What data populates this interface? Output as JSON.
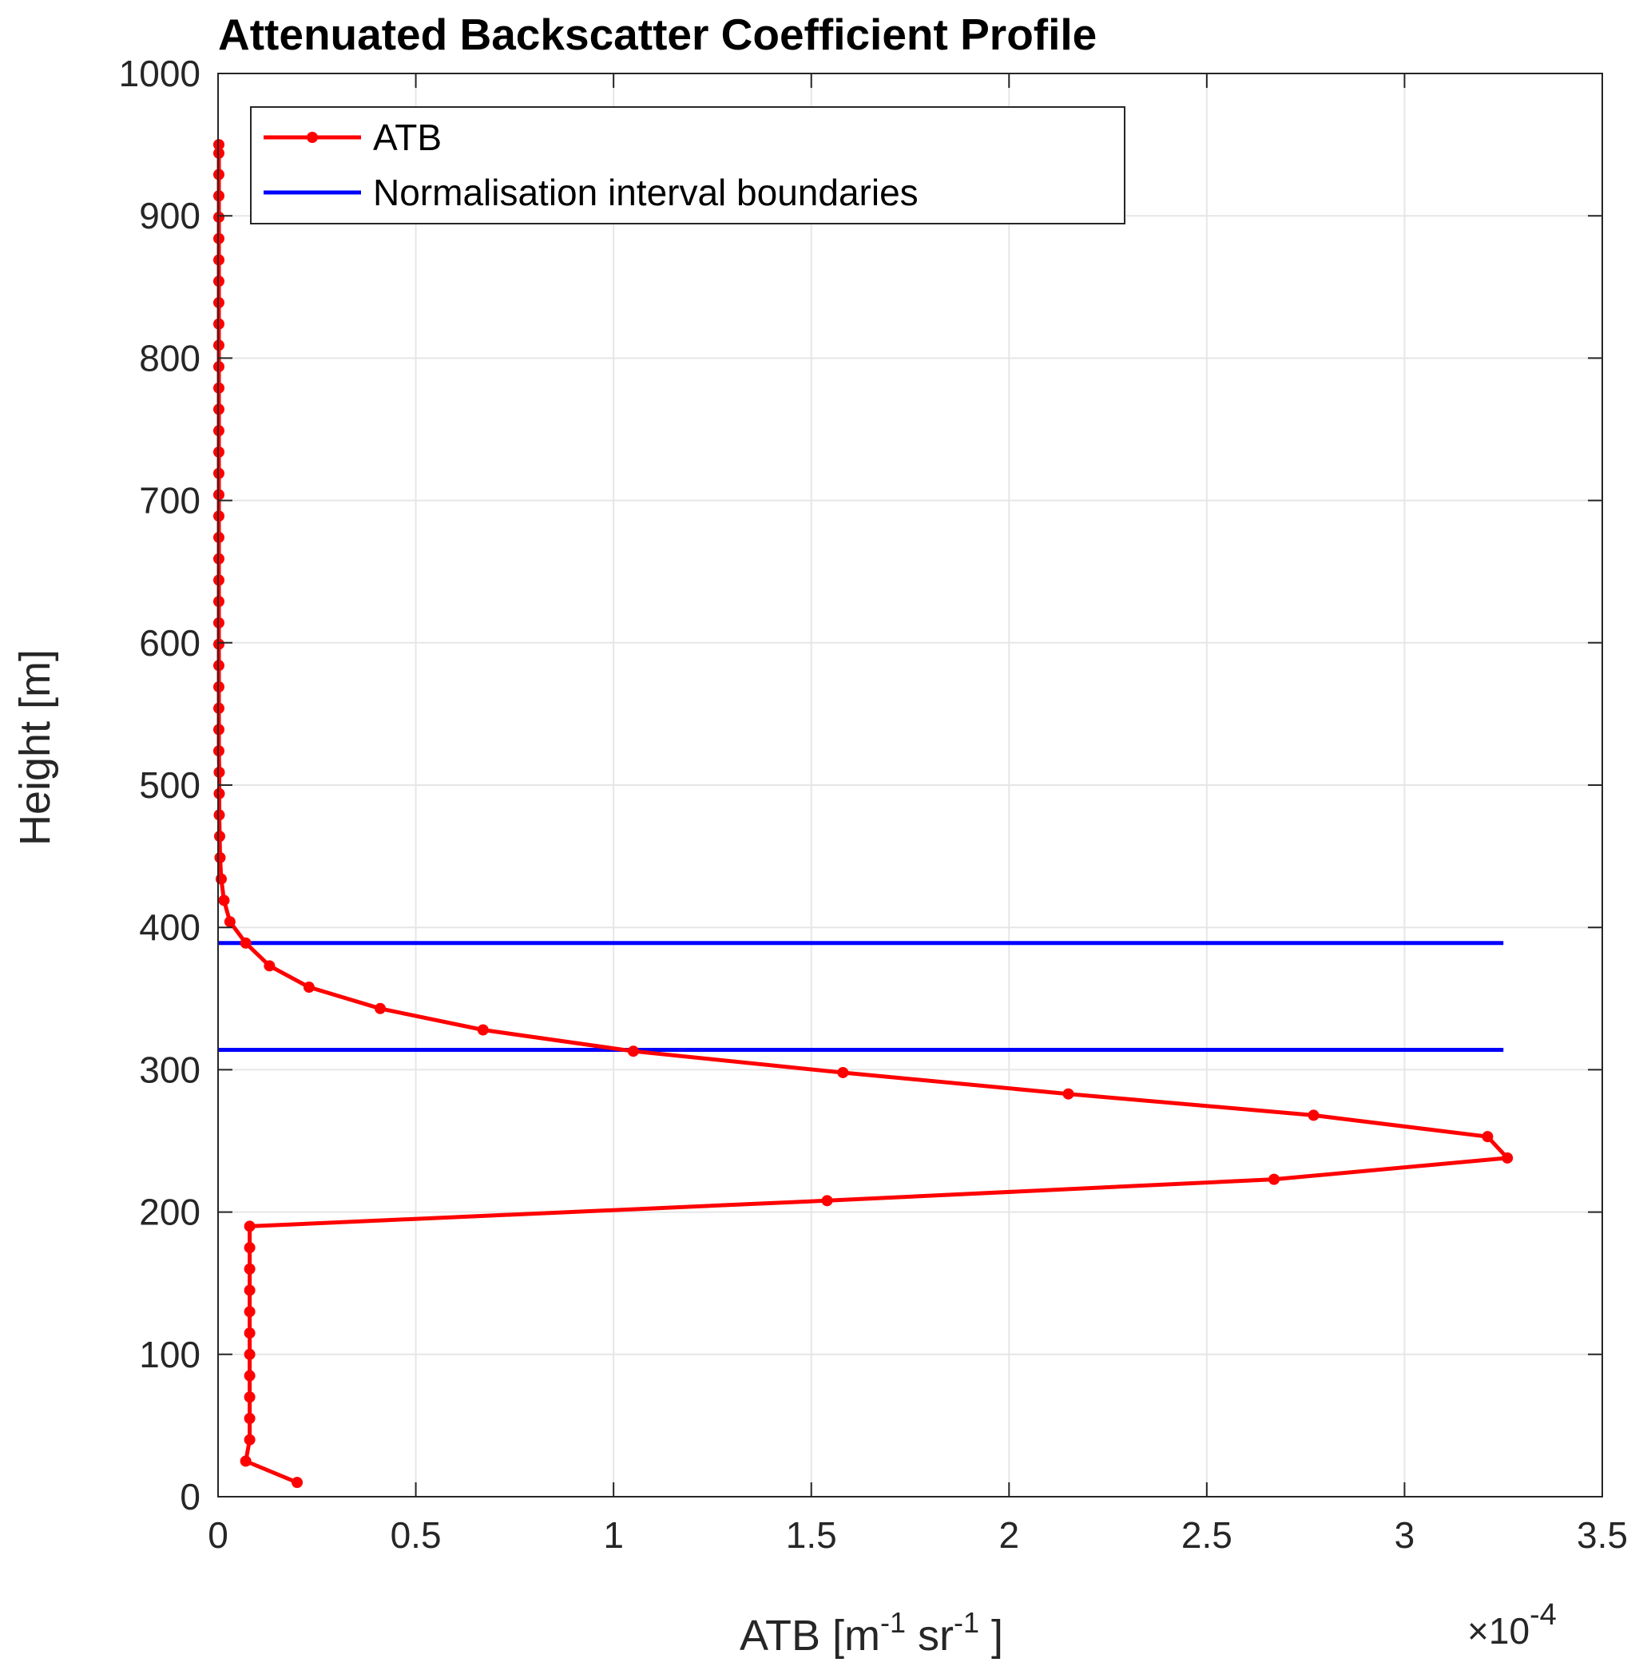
{
  "chart_data": {
    "type": "line",
    "title": "Attenuated Backscatter Coefficient Profile",
    "xlabel": {
      "base": "ATB [m",
      "exp1": "-1",
      "mid": " sr",
      "exp2": "-1",
      "end": " ]"
    },
    "ylabel": "Height [m]",
    "x_multiplier": {
      "prefix": "×10",
      "exponent": "-4"
    },
    "xlim": [
      0,
      3.5
    ],
    "ylim": [
      0,
      1000
    ],
    "xticks": [
      0,
      0.5,
      1,
      1.5,
      2,
      2.5,
      3,
      3.5
    ],
    "xtick_labels": [
      "0",
      "0.5",
      "1",
      "1.5",
      "2",
      "2.5",
      "3",
      "3.5"
    ],
    "yticks": [
      0,
      100,
      200,
      300,
      400,
      500,
      600,
      700,
      800,
      900,
      1000
    ],
    "ytick_labels": [
      "0",
      "100",
      "200",
      "300",
      "400",
      "500",
      "600",
      "700",
      "800",
      "900",
      "1000"
    ],
    "grid": true,
    "legend_position": "top-left",
    "colors": {
      "atb": "#ff0000",
      "boundaries": "#0000ff",
      "grid": "#e6e6e6",
      "axis": "#262626"
    },
    "series": [
      {
        "name": "ATB",
        "color": "#ff0000",
        "marker": "dot",
        "points": [
          [
            0.2,
            10
          ],
          [
            0.07,
            25
          ],
          [
            0.08,
            40
          ],
          [
            0.08,
            55
          ],
          [
            0.08,
            70
          ],
          [
            0.08,
            85
          ],
          [
            0.08,
            100
          ],
          [
            0.08,
            115
          ],
          [
            0.08,
            130
          ],
          [
            0.08,
            145
          ],
          [
            0.08,
            160
          ],
          [
            0.08,
            175
          ],
          [
            0.08,
            190
          ],
          [
            1.54,
            208
          ],
          [
            2.67,
            223
          ],
          [
            3.26,
            238
          ],
          [
            3.21,
            253
          ],
          [
            2.77,
            268
          ],
          [
            2.15,
            283
          ],
          [
            1.58,
            298
          ],
          [
            1.05,
            313
          ],
          [
            0.67,
            328
          ],
          [
            0.41,
            343
          ],
          [
            0.23,
            358
          ],
          [
            0.13,
            373
          ],
          [
            0.07,
            389
          ],
          [
            0.03,
            404
          ],
          [
            0.015,
            419
          ],
          [
            0.008,
            434
          ],
          [
            0.005,
            449
          ],
          [
            0.004,
            464
          ],
          [
            0.003,
            479
          ],
          [
            0.003,
            494
          ],
          [
            0.003,
            509
          ],
          [
            0.002,
            524
          ],
          [
            0.002,
            539
          ],
          [
            0.002,
            554
          ],
          [
            0.002,
            569
          ],
          [
            0.002,
            584
          ],
          [
            0.002,
            599
          ],
          [
            0.002,
            614
          ],
          [
            0.002,
            629
          ],
          [
            0.002,
            644
          ],
          [
            0.002,
            659
          ],
          [
            0.002,
            674
          ],
          [
            0.002,
            689
          ],
          [
            0.002,
            704
          ],
          [
            0.002,
            719
          ],
          [
            0.002,
            734
          ],
          [
            0.002,
            749
          ],
          [
            0.002,
            764
          ],
          [
            0.002,
            779
          ],
          [
            0.002,
            794
          ],
          [
            0.002,
            809
          ],
          [
            0.002,
            824
          ],
          [
            0.002,
            839
          ],
          [
            0.002,
            854
          ],
          [
            0.002,
            869
          ],
          [
            0.002,
            884
          ],
          [
            0.002,
            899
          ],
          [
            0.002,
            914
          ],
          [
            0.002,
            929
          ],
          [
            0.002,
            944
          ],
          [
            0.002,
            950
          ]
        ]
      },
      {
        "name": "Normalisation interval boundaries",
        "color": "#0000ff",
        "lines": [
          {
            "y": 389,
            "x": [
              0,
              3.25
            ]
          },
          {
            "y": 314,
            "x": [
              0,
              3.25
            ]
          }
        ]
      }
    ]
  }
}
